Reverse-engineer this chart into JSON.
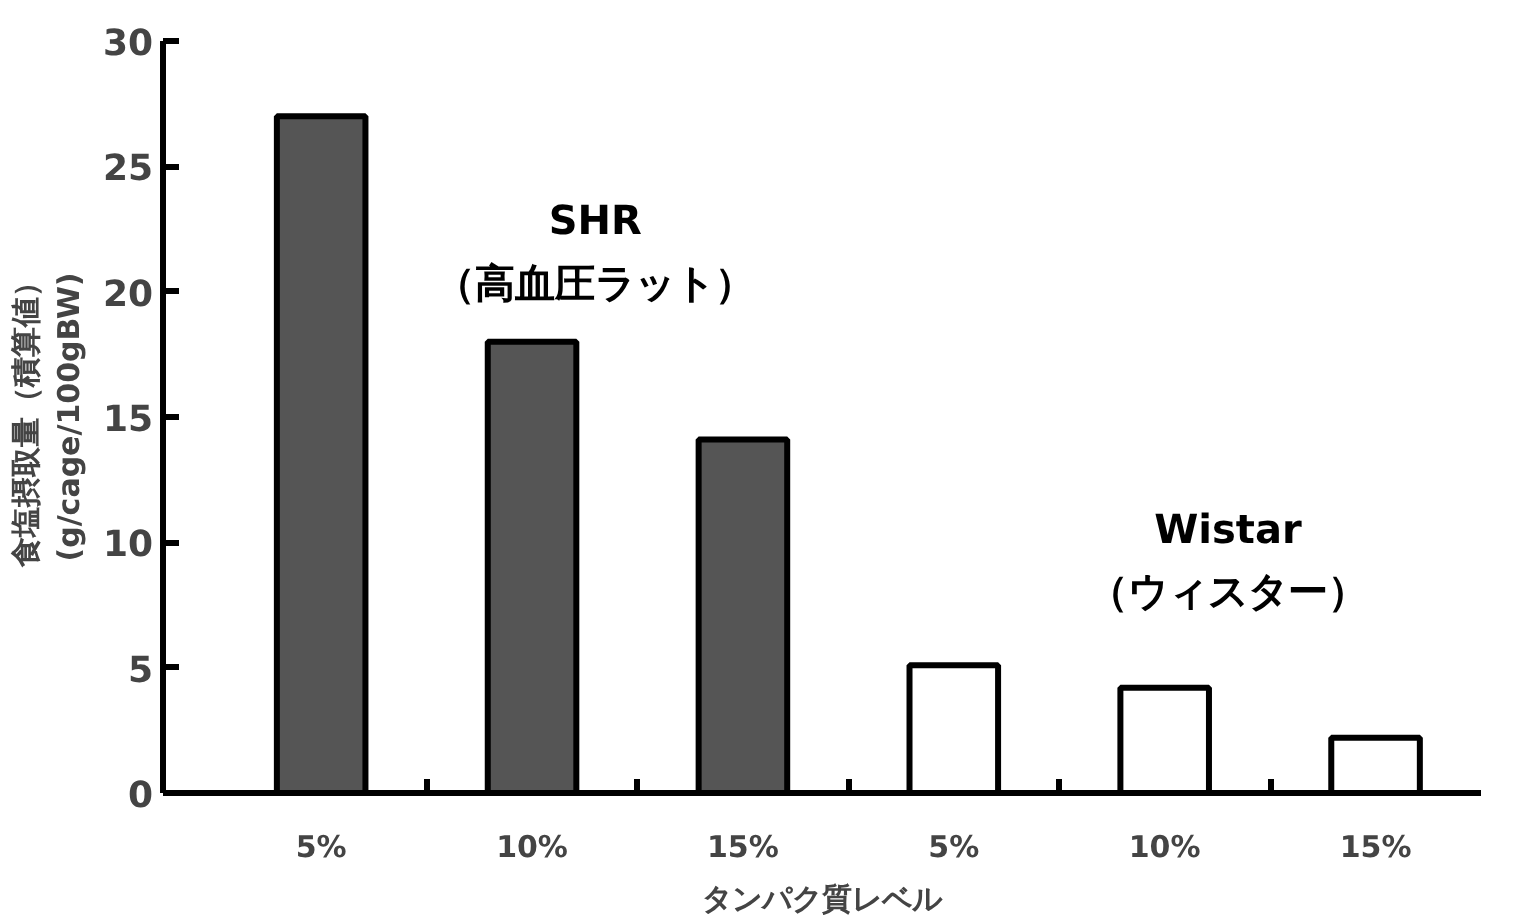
{
  "chart_data": {
    "type": "bar",
    "categories": [
      "5%",
      "10%",
      "15%",
      "5%",
      "10%",
      "15%"
    ],
    "series": [
      {
        "name": "SHR\n（高血圧ラット）",
        "color": "#555555",
        "values": [
          27,
          18,
          14.1,
          null,
          null,
          null
        ]
      },
      {
        "name": "Wistar\n（ウィスター）",
        "color": "#ffffff",
        "values": [
          null,
          null,
          null,
          5.1,
          4.2,
          2.2
        ]
      }
    ],
    "xlabel": "タンパク質レベル",
    "ylabel": "食塩摂取量（積算値）\n(g/cage/100gBW)",
    "ylim": [
      0,
      30
    ],
    "yticks": [
      0,
      5,
      10,
      15,
      20,
      25,
      30
    ],
    "grid": false
  }
}
